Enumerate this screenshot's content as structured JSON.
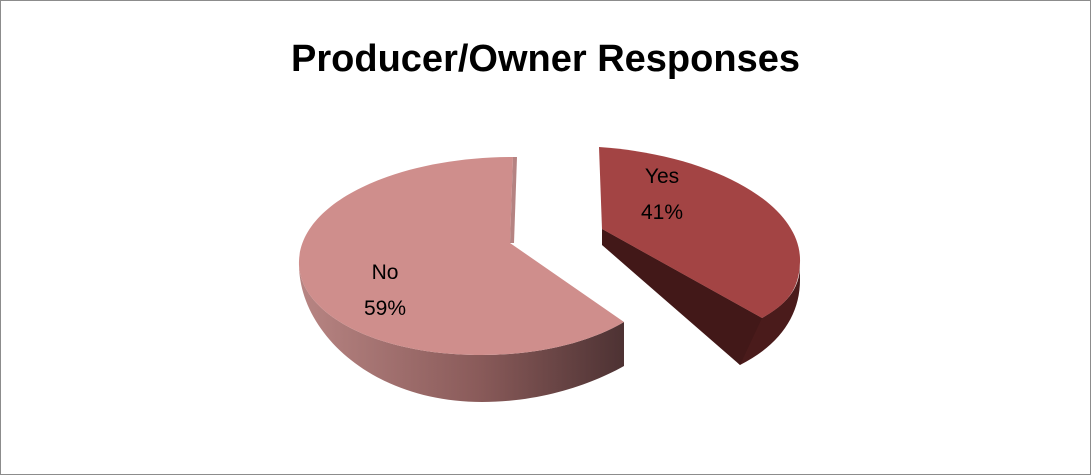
{
  "chart_data": {
    "type": "pie",
    "title": "Producer/Owner Responses",
    "three_d": true,
    "exploded": true,
    "slices": [
      {
        "label": "Yes",
        "value": 41,
        "percent_label": "41%",
        "color": "#a34444",
        "side_color": "#4a1b1b"
      },
      {
        "label": "No",
        "value": 59,
        "percent_label": "59%",
        "color": "#cf8e8c",
        "side_color": "#8a5a59"
      }
    ]
  }
}
